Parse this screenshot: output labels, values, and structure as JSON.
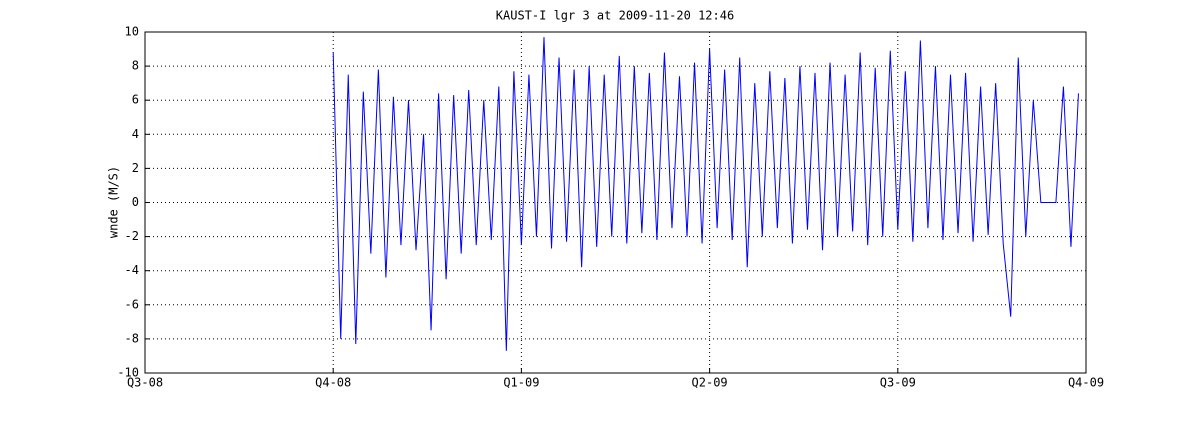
{
  "chart_data": {
    "type": "line",
    "title": "KAUST-I lgr 3 at 2009-11-20 12:46",
    "ylabel": "wnde (M/S)",
    "xlim": [
      0,
      5
    ],
    "xticks": [
      {
        "value": 0,
        "label": "Q3-08"
      },
      {
        "value": 1,
        "label": "Q4-08"
      },
      {
        "value": 2,
        "label": "Q1-09"
      },
      {
        "value": 3,
        "label": "Q2-09"
      },
      {
        "value": 4,
        "label": "Q3-09"
      },
      {
        "value": 5,
        "label": "Q4-09"
      }
    ],
    "ylim": [
      -10,
      10
    ],
    "yticks": [
      -10,
      -8,
      -6,
      -4,
      -2,
      0,
      2,
      4,
      6,
      8,
      10
    ],
    "grid": true,
    "x": [
      1.0,
      1.04,
      1.08,
      1.12,
      1.16,
      1.2,
      1.24,
      1.28,
      1.32,
      1.36,
      1.4,
      1.44,
      1.48,
      1.52,
      1.56,
      1.6,
      1.64,
      1.68,
      1.72,
      1.76,
      1.8,
      1.84,
      1.88,
      1.92,
      1.96,
      2.0,
      2.04,
      2.08,
      2.12,
      2.16,
      2.2,
      2.24,
      2.28,
      2.32,
      2.36,
      2.4,
      2.44,
      2.48,
      2.52,
      2.56,
      2.6,
      2.64,
      2.68,
      2.72,
      2.76,
      2.8,
      2.84,
      2.88,
      2.92,
      2.96,
      3.0,
      3.04,
      3.08,
      3.12,
      3.16,
      3.2,
      3.24,
      3.28,
      3.32,
      3.36,
      3.4,
      3.44,
      3.48,
      3.52,
      3.56,
      3.6,
      3.64,
      3.68,
      3.72,
      3.76,
      3.8,
      3.84,
      3.88,
      3.92,
      3.96,
      4.0,
      4.04,
      4.08,
      4.12,
      4.16,
      4.2,
      4.24,
      4.28,
      4.32,
      4.36,
      4.4,
      4.44,
      4.48,
      4.52,
      4.56,
      4.6,
      4.64,
      4.68,
      4.72,
      4.76,
      4.8,
      4.84,
      4.88,
      4.92,
      4.96
    ],
    "series": [
      {
        "color": "#0000ff",
        "values": [
          8.8,
          -8.0,
          7.5,
          -8.3,
          6.5,
          -3,
          7.8,
          -4.4,
          6.2,
          -2.5,
          6,
          -2.8,
          4,
          -7.5,
          6.4,
          -4.5,
          6.3,
          -3,
          6.6,
          -2.5,
          6,
          -2.2,
          6.8,
          -8.7,
          7.7,
          -2.5,
          7.5,
          -2,
          9.7,
          -2.7,
          8.5,
          -2.3,
          7.8,
          -3.8,
          8,
          -2.6,
          7.5,
          -2,
          8.6,
          -2.4,
          8,
          -1.8,
          7.6,
          -2.2,
          8.8,
          -1.5,
          7.4,
          -2,
          8.2,
          -2.4,
          9,
          -1.5,
          7.8,
          -2.2,
          8.5,
          -3.8,
          7,
          -2,
          7.7,
          -1.5,
          7.3,
          -2.4,
          8,
          -1.6,
          7.6,
          -2.8,
          8.2,
          -2,
          7.5,
          -1.7,
          8.8,
          -2.5,
          7.9,
          -2,
          8.9,
          -1.6,
          7.7,
          -2.3,
          9.5,
          -1.5,
          8,
          -2.2,
          7.5,
          -1.8,
          7.6,
          -2.3,
          6.8,
          -1.9,
          7,
          -2.4,
          -6.7,
          8.5,
          -2,
          6,
          0,
          0,
          0,
          6.8,
          -2.6,
          6.4
        ]
      }
    ]
  }
}
